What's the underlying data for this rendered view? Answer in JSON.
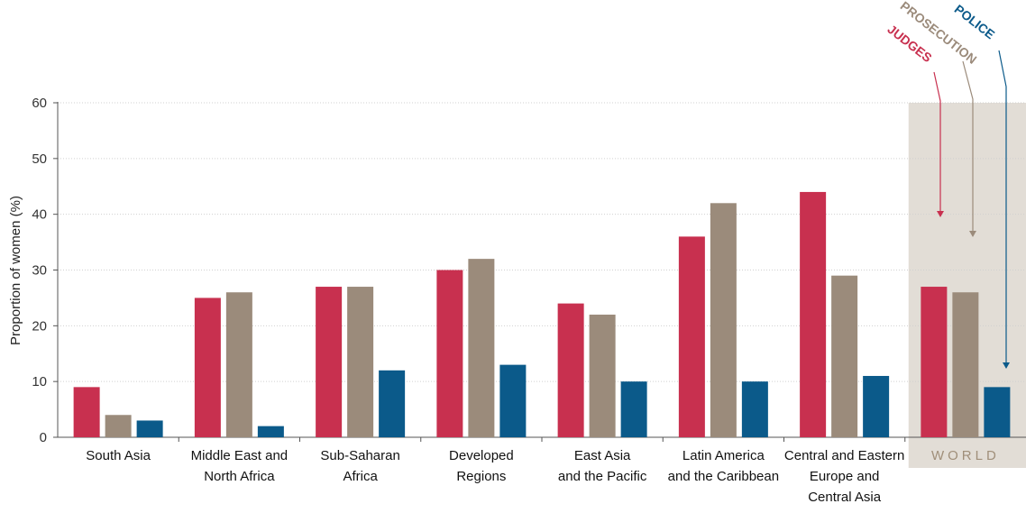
{
  "colors": {
    "judges": "#c8304f",
    "prosecution": "#9b8b7b",
    "police": "#0b5a8a",
    "world_band": "#e2ddd6",
    "world_text": "#a08f7a",
    "corner_badge": "#c9cf2a"
  },
  "chart_data": {
    "type": "bar",
    "ylabel": "Proportion of women (%)",
    "ylim": [
      0,
      60
    ],
    "yticks": [
      "0",
      "10",
      "20",
      "30",
      "40",
      "50",
      "60"
    ],
    "categories": [
      [
        "South Asia"
      ],
      [
        "Middle East and",
        "North Africa"
      ],
      [
        "Sub-Saharan",
        "Africa"
      ],
      [
        "Developed",
        "Regions"
      ],
      [
        "East Asia",
        "and the Pacific"
      ],
      [
        "Latin America",
        "and the Caribbean"
      ],
      [
        "Central and Eastern",
        "Europe and",
        "Central Asia"
      ],
      [
        "WORLD"
      ]
    ],
    "series": [
      {
        "name": "JUDGES",
        "values": [
          9,
          25,
          27,
          30,
          24,
          36,
          44,
          27
        ]
      },
      {
        "name": "PROSECUTION",
        "values": [
          4,
          26,
          27,
          32,
          22,
          42,
          29,
          26
        ]
      },
      {
        "name": "POLICE",
        "values": [
          3,
          2,
          12,
          13,
          10,
          10,
          11,
          9
        ]
      }
    ],
    "grid": true,
    "legend_placement": "top-right"
  }
}
